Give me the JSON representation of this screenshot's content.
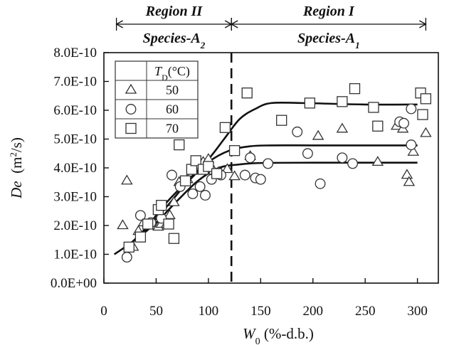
{
  "chart_data": {
    "type": "scatter",
    "xlabel": {
      "main": "W",
      "sub": "0",
      "rest": " (%-d.b.)"
    },
    "ylabel": {
      "main": "De",
      "rest": "  (m",
      "sup": "2",
      "tail": "/s)"
    },
    "xlim": [
      0,
      320
    ],
    "ylim": [
      0,
      8e-10
    ],
    "x_ticks": [
      {
        "value": 0,
        "label": "0"
      },
      {
        "value": 50,
        "label": "50"
      },
      {
        "value": 100,
        "label": "100"
      },
      {
        "value": 150,
        "label": "150"
      },
      {
        "value": 200,
        "label": "200"
      },
      {
        "value": 250,
        "label": "250"
      },
      {
        "value": 300,
        "label": "300"
      }
    ],
    "y_ticks": [
      {
        "value": 0,
        "label": "0.0E+00"
      },
      {
        "value": 1e-10,
        "label": "1.0E-10"
      },
      {
        "value": 2e-10,
        "label": "2.0E-10"
      },
      {
        "value": 3e-10,
        "label": "3.0E-10"
      },
      {
        "value": 4e-10,
        "label": "4.0E-10"
      },
      {
        "value": 5e-10,
        "label": "5.0E-10"
      },
      {
        "value": 6e-10,
        "label": "6.0E-10"
      },
      {
        "value": 7e-10,
        "label": "7.0E-10"
      },
      {
        "value": 8e-10,
        "label": "8.0E-10"
      }
    ],
    "grid": false,
    "legend": {
      "placement": "top-left",
      "header": {
        "main": "T",
        "sub": "D",
        "rest": "(°C)"
      },
      "entries": [
        {
          "marker": "triangle",
          "label": "50"
        },
        {
          "marker": "circle",
          "label": "60"
        },
        {
          "marker": "square",
          "label": "70"
        }
      ]
    },
    "divider_x": 122,
    "regions": [
      {
        "title": "Region II",
        "species": {
          "main": "Species-A",
          "sub": "2"
        },
        "x_from": 12,
        "x_to": 122
      },
      {
        "title": "Region I",
        "species": {
          "main": "Species-A",
          "sub": "1"
        },
        "x_from": 122,
        "x_to": 308
      }
    ],
    "series": [
      {
        "marker": "triangle",
        "label": "50",
        "points": [
          [
            18,
            2e-10
          ],
          [
            22,
            3.55e-10
          ],
          [
            28,
            1.25e-10
          ],
          [
            33,
            1.8e-10
          ],
          [
            38,
            2.1e-10
          ],
          [
            45,
            2e-10
          ],
          [
            52,
            1.95e-10
          ],
          [
            55,
            2.05e-10
          ],
          [
            60,
            2.05e-10
          ],
          [
            63,
            2.35e-10
          ],
          [
            67,
            2.8e-10
          ],
          [
            72,
            3.5e-10
          ],
          [
            80,
            3.6e-10
          ],
          [
            85,
            3.9e-10
          ],
          [
            90,
            4.1e-10
          ],
          [
            95,
            4.2e-10
          ],
          [
            100,
            4.3e-10
          ],
          [
            105,
            3.9e-10
          ],
          [
            110,
            3.85e-10
          ],
          [
            118,
            3.95e-10
          ],
          [
            125,
            3.7e-10
          ],
          [
            140,
            4.4e-10
          ],
          [
            205,
            5.1e-10
          ],
          [
            228,
            5.35e-10
          ],
          [
            262,
            4.2e-10
          ],
          [
            280,
            5.45e-10
          ],
          [
            286,
            5.35e-10
          ],
          [
            290,
            3.75e-10
          ],
          [
            292,
            3.5e-10
          ],
          [
            296,
            4.55e-10
          ],
          [
            308,
            5.2e-10
          ]
        ]
      },
      {
        "marker": "circle",
        "label": "60",
        "points": [
          [
            22,
            9e-11
          ],
          [
            35,
            2.35e-10
          ],
          [
            45,
            2.1e-10
          ],
          [
            55,
            2.25e-10
          ],
          [
            65,
            3.75e-10
          ],
          [
            73,
            3.35e-10
          ],
          [
            85,
            3.1e-10
          ],
          [
            92,
            3.35e-10
          ],
          [
            97,
            3.05e-10
          ],
          [
            103,
            3.6e-10
          ],
          [
            112,
            3.75e-10
          ],
          [
            135,
            3.75e-10
          ],
          [
            140,
            4.35e-10
          ],
          [
            145,
            3.65e-10
          ],
          [
            150,
            3.6e-10
          ],
          [
            157,
            4.15e-10
          ],
          [
            185,
            5.25e-10
          ],
          [
            195,
            4.5e-10
          ],
          [
            207,
            3.45e-10
          ],
          [
            228,
            4.35e-10
          ],
          [
            238,
            4.15e-10
          ],
          [
            283,
            5.6e-10
          ],
          [
            287,
            5.55e-10
          ],
          [
            294,
            6.05e-10
          ],
          [
            294,
            4.8e-10
          ]
        ]
      },
      {
        "marker": "square",
        "label": "70",
        "points": [
          [
            24,
            1.25e-10
          ],
          [
            35,
            1.6e-10
          ],
          [
            42,
            2.05e-10
          ],
          [
            52,
            2.55e-10
          ],
          [
            55,
            2.7e-10
          ],
          [
            62,
            2.05e-10
          ],
          [
            67,
            1.55e-10
          ],
          [
            72,
            4.8e-10
          ],
          [
            78,
            3.55e-10
          ],
          [
            84,
            3.95e-10
          ],
          [
            88,
            4.25e-10
          ],
          [
            95,
            3.95e-10
          ],
          [
            100,
            4.05e-10
          ],
          [
            108,
            3.8e-10
          ],
          [
            116,
            5.4e-10
          ],
          [
            125,
            4.6e-10
          ],
          [
            137,
            6.6e-10
          ],
          [
            170,
            5.65e-10
          ],
          [
            197,
            6.25e-10
          ],
          [
            228,
            6.3e-10
          ],
          [
            240,
            6.75e-10
          ],
          [
            258,
            6.1e-10
          ],
          [
            262,
            5.45e-10
          ],
          [
            303,
            6.6e-10
          ],
          [
            305,
            5.85e-10
          ],
          [
            308,
            6.4e-10
          ]
        ]
      }
    ],
    "fit_curves": [
      {
        "label": "50",
        "points": [
          [
            10,
            1e-10
          ],
          [
            30,
            1.5e-10
          ],
          [
            50,
            2.1e-10
          ],
          [
            70,
            2.85e-10
          ],
          [
            90,
            3.55e-10
          ],
          [
            110,
            4e-10
          ],
          [
            130,
            4.12e-10
          ],
          [
            150,
            4.17e-10
          ],
          [
            200,
            4.18e-10
          ],
          [
            250,
            4.18e-10
          ],
          [
            300,
            4.18e-10
          ]
        ]
      },
      {
        "label": "60",
        "points": [
          [
            20,
            1.2e-10
          ],
          [
            40,
            1.85e-10
          ],
          [
            60,
            2.65e-10
          ],
          [
            80,
            3.5e-10
          ],
          [
            100,
            4.2e-10
          ],
          [
            120,
            4.6e-10
          ],
          [
            140,
            4.75e-10
          ],
          [
            160,
            4.78e-10
          ],
          [
            200,
            4.78e-10
          ],
          [
            250,
            4.78e-10
          ],
          [
            300,
            4.78e-10
          ]
        ]
      },
      {
        "label": "70",
        "points": [
          [
            22,
            1.25e-10
          ],
          [
            40,
            1.9e-10
          ],
          [
            60,
            2.8e-10
          ],
          [
            80,
            3.55e-10
          ],
          [
            100,
            4.3e-10
          ],
          [
            115,
            5e-10
          ],
          [
            130,
            5.7e-10
          ],
          [
            145,
            6.05e-10
          ],
          [
            160,
            6.25e-10
          ],
          [
            190,
            6.25e-10
          ],
          [
            250,
            6.2e-10
          ],
          [
            300,
            6.2e-10
          ]
        ]
      }
    ]
  }
}
